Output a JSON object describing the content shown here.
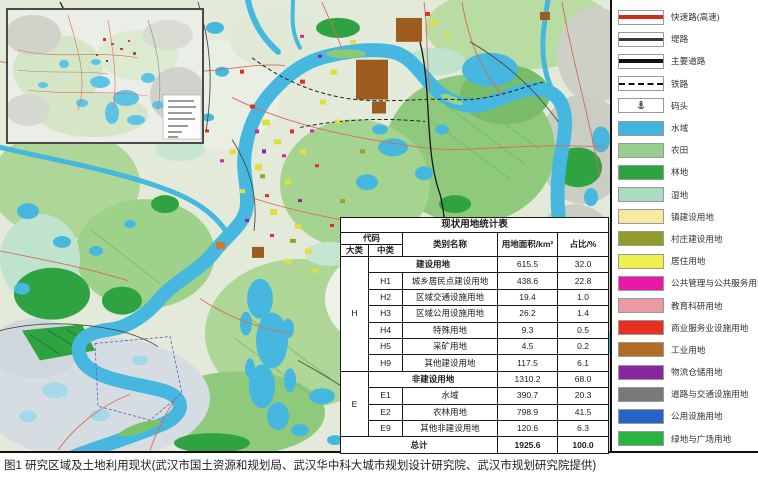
{
  "figure": {
    "caption": "图1 研究区域及土地利用现状(武汉市国土资源和规划局、武汉华中科大城市规划设计研究院、武汉市规划研究院提供)"
  },
  "table": {
    "title": "现状用地统计表",
    "headers": {
      "code": "代码",
      "major": "大类",
      "minor": "中类",
      "name": "类别名称",
      "area": "用地面积/km²",
      "share": "占比/%"
    },
    "rows": [
      {
        "major": "H",
        "minor": "",
        "name": "建设用地",
        "area": "615.5",
        "share": "32.0"
      },
      {
        "minor": "H1",
        "name": "城乡居民点建设用地",
        "area": "438.6",
        "share": "22.8"
      },
      {
        "minor": "H2",
        "name": "区域交通设施用地",
        "area": "19.4",
        "share": "1.0"
      },
      {
        "minor": "H3",
        "name": "区域公用设施用地",
        "area": "26.2",
        "share": "1.4"
      },
      {
        "minor": "H4",
        "name": "特殊用地",
        "area": "9.3",
        "share": "0.5"
      },
      {
        "minor": "H5",
        "name": "采矿用地",
        "area": "4.5",
        "share": "0.2"
      },
      {
        "minor": "H9",
        "name": "其他建设用地",
        "area": "117.5",
        "share": "6.1"
      },
      {
        "major": "E",
        "minor": "",
        "name": "非建设用地",
        "area": "1310.2",
        "share": "68.0"
      },
      {
        "minor": "E1",
        "name": "水域",
        "area": "390.7",
        "share": "20.3"
      },
      {
        "minor": "E2",
        "name": "农林用地",
        "area": "798.9",
        "share": "41.5"
      },
      {
        "minor": "E9",
        "name": "其他非建设用地",
        "area": "120.6",
        "share": "6.3"
      },
      {
        "name": "总计",
        "area": "1925.6",
        "share": "100.0"
      }
    ]
  },
  "legend": {
    "items": [
      {
        "label": "快速路(高速)",
        "type": "line",
        "color": "#cf2a22",
        "thickness": 4
      },
      {
        "label": "堤路",
        "type": "line",
        "color": "#3a3a3a",
        "thickness": 3
      },
      {
        "label": "主要道路",
        "type": "line",
        "color": "#111111",
        "thickness": 4
      },
      {
        "label": "铁路",
        "type": "dashed",
        "color": "#111111",
        "thickness": 2
      },
      {
        "label": "码头",
        "type": "anchor",
        "color": "#222222",
        "thickness": 0
      },
      {
        "label": "水域",
        "type": "fill",
        "color": "#41b4dc"
      },
      {
        "label": "农田",
        "type": "fill",
        "color": "#97ce8e"
      },
      {
        "label": "林地",
        "type": "fill",
        "color": "#2ea33f"
      },
      {
        "label": "湿地",
        "type": "fill",
        "color": "#a9dcc3"
      },
      {
        "label": "镇建设用地",
        "type": "fill",
        "color": "#f9e8a0"
      },
      {
        "label": "村庄建设用地",
        "type": "fill",
        "color": "#939b2d"
      },
      {
        "label": "居住用地",
        "type": "fill",
        "color": "#edf04f"
      },
      {
        "label": "公共管理与公共服务用地",
        "type": "fill",
        "color": "#e818a8"
      },
      {
        "label": "教育科研用地",
        "type": "fill",
        "color": "#eb9aa4"
      },
      {
        "label": "商业服务业设施用地",
        "type": "fill",
        "color": "#e92f20"
      },
      {
        "label": "工业用地",
        "type": "fill",
        "color": "#b06c24"
      },
      {
        "label": "物流仓储用地",
        "type": "fill",
        "color": "#8826a0"
      },
      {
        "label": "道路与交通设施用地",
        "type": "fill",
        "color": "#787878"
      },
      {
        "label": "公用设施用地",
        "type": "fill",
        "color": "#2663c6"
      },
      {
        "label": "绿地与广场用地",
        "type": "fill",
        "color": "#27b440"
      }
    ]
  }
}
